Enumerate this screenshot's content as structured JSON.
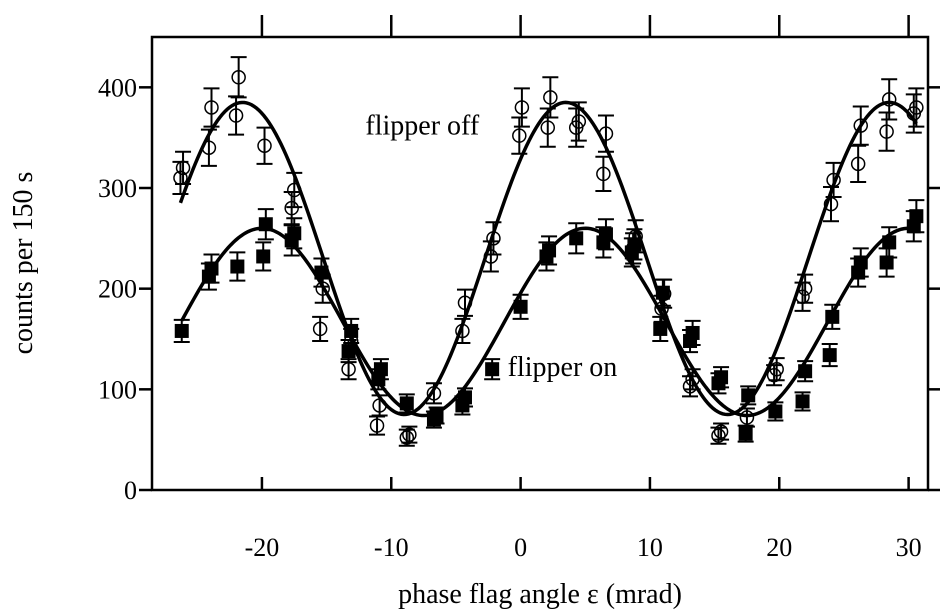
{
  "chart_data": {
    "type": "scatter",
    "title": "",
    "xlabel": "phase flag angle ε (mrad)",
    "ylabel": "counts per 150 s",
    "xlim": [
      -28.5,
      31.5
    ],
    "ylim": [
      0,
      450
    ],
    "xticks": [
      -20,
      -10,
      0,
      10,
      20,
      30
    ],
    "yticks": [
      0,
      100,
      200,
      300,
      400
    ],
    "x_tick_labels": [
      "-20",
      "-10",
      "0",
      "10",
      "20",
      "30"
    ],
    "y_tick_labels": [
      "0",
      "100",
      "200",
      "300",
      "400"
    ],
    "grid": false,
    "legend": "none",
    "annotations": [
      {
        "text": "flipper off",
        "x": -12,
        "y": 362
      },
      {
        "text": "flipper on",
        "x": -1,
        "y": 122
      }
    ],
    "series": [
      {
        "marker": "open-circle",
        "fit": {
          "mean": 230,
          "amplitude": 155,
          "period": 25,
          "phase_x": 3.5
        },
        "points": [
          {
            "x": -26.3,
            "y": 310,
            "err": 16
          },
          {
            "x": -26.1,
            "y": 320,
            "err": 16
          },
          {
            "x": -24.1,
            "y": 340,
            "err": 18
          },
          {
            "x": -23.9,
            "y": 380,
            "err": 19
          },
          {
            "x": -22.0,
            "y": 372,
            "err": 19
          },
          {
            "x": -21.8,
            "y": 410,
            "err": 20
          },
          {
            "x": -19.8,
            "y": 342,
            "err": 18
          },
          {
            "x": -17.7,
            "y": 280,
            "err": 16
          },
          {
            "x": -17.5,
            "y": 298,
            "err": 17
          },
          {
            "x": -15.5,
            "y": 160,
            "err": 12
          },
          {
            "x": -15.3,
            "y": 200,
            "err": 14
          },
          {
            "x": -13.3,
            "y": 120,
            "err": 10
          },
          {
            "x": -13.1,
            "y": 148,
            "err": 12
          },
          {
            "x": -11.1,
            "y": 64,
            "err": 9
          },
          {
            "x": -10.9,
            "y": 84,
            "err": 10
          },
          {
            "x": -8.8,
            "y": 52,
            "err": 8
          },
          {
            "x": -8.6,
            "y": 55,
            "err": 8
          },
          {
            "x": -6.7,
            "y": 96,
            "err": 10
          },
          {
            "x": -4.5,
            "y": 158,
            "err": 12
          },
          {
            "x": -4.3,
            "y": 186,
            "err": 13
          },
          {
            "x": -2.3,
            "y": 232,
            "err": 15
          },
          {
            "x": -2.1,
            "y": 250,
            "err": 16
          },
          {
            "x": -0.1,
            "y": 352,
            "err": 18
          },
          {
            "x": 0.1,
            "y": 380,
            "err": 19
          },
          {
            "x": 2.1,
            "y": 360,
            "err": 19
          },
          {
            "x": 2.3,
            "y": 390,
            "err": 20
          },
          {
            "x": 4.3,
            "y": 360,
            "err": 19
          },
          {
            "x": 4.5,
            "y": 366,
            "err": 19
          },
          {
            "x": 6.4,
            "y": 314,
            "err": 17
          },
          {
            "x": 6.6,
            "y": 354,
            "err": 18
          },
          {
            "x": 8.7,
            "y": 240,
            "err": 15
          },
          {
            "x": 8.9,
            "y": 252,
            "err": 16
          },
          {
            "x": 10.9,
            "y": 180,
            "err": 13
          },
          {
            "x": 11.1,
            "y": 195,
            "err": 14
          },
          {
            "x": 13.1,
            "y": 103,
            "err": 10
          },
          {
            "x": 13.3,
            "y": 110,
            "err": 10
          },
          {
            "x": 15.3,
            "y": 54,
            "err": 8
          },
          {
            "x": 15.5,
            "y": 58,
            "err": 8
          },
          {
            "x": 17.5,
            "y": 72,
            "err": 9
          },
          {
            "x": 19.6,
            "y": 114,
            "err": 10
          },
          {
            "x": 19.8,
            "y": 120,
            "err": 11
          },
          {
            "x": 21.8,
            "y": 192,
            "err": 14
          },
          {
            "x": 22.0,
            "y": 200,
            "err": 14
          },
          {
            "x": 24.0,
            "y": 284,
            "err": 17
          },
          {
            "x": 24.2,
            "y": 308,
            "err": 17
          },
          {
            "x": 26.1,
            "y": 324,
            "err": 18
          },
          {
            "x": 26.3,
            "y": 362,
            "err": 19
          },
          {
            "x": 28.3,
            "y": 356,
            "err": 19
          },
          {
            "x": 28.5,
            "y": 388,
            "err": 20
          },
          {
            "x": 30.4,
            "y": 374,
            "err": 19
          },
          {
            "x": 30.6,
            "y": 380,
            "err": 19
          }
        ]
      },
      {
        "marker": "filled-square",
        "fit": {
          "mean": 167,
          "amplitude": 93,
          "period": 25,
          "phase_x": 5.0
        },
        "points": [
          {
            "x": -26.2,
            "y": 158,
            "err": 11
          },
          {
            "x": -24.1,
            "y": 212,
            "err": 13
          },
          {
            "x": -23.9,
            "y": 220,
            "err": 14
          },
          {
            "x": -21.9,
            "y": 222,
            "err": 14
          },
          {
            "x": -19.9,
            "y": 232,
            "err": 14
          },
          {
            "x": -19.7,
            "y": 264,
            "err": 15
          },
          {
            "x": -17.7,
            "y": 248,
            "err": 15
          },
          {
            "x": -17.5,
            "y": 255,
            "err": 15
          },
          {
            "x": -15.4,
            "y": 216,
            "err": 14
          },
          {
            "x": -13.3,
            "y": 138,
            "err": 11
          },
          {
            "x": -13.1,
            "y": 158,
            "err": 12
          },
          {
            "x": -11.0,
            "y": 110,
            "err": 10
          },
          {
            "x": -10.8,
            "y": 120,
            "err": 10
          },
          {
            "x": -8.8,
            "y": 86,
            "err": 9
          },
          {
            "x": -6.7,
            "y": 70,
            "err": 8
          },
          {
            "x": -6.5,
            "y": 74,
            "err": 8
          },
          {
            "x": -4.5,
            "y": 84,
            "err": 9
          },
          {
            "x": -4.3,
            "y": 92,
            "err": 9
          },
          {
            "x": -2.2,
            "y": 120,
            "err": 10
          },
          {
            "x": 0.0,
            "y": 182,
            "err": 12
          },
          {
            "x": 2.0,
            "y": 232,
            "err": 14
          },
          {
            "x": 2.2,
            "y": 238,
            "err": 14
          },
          {
            "x": 4.3,
            "y": 250,
            "err": 15
          },
          {
            "x": 6.4,
            "y": 246,
            "err": 15
          },
          {
            "x": 6.6,
            "y": 254,
            "err": 15
          },
          {
            "x": 8.6,
            "y": 236,
            "err": 14
          },
          {
            "x": 8.8,
            "y": 244,
            "err": 15
          },
          {
            "x": 10.8,
            "y": 160,
            "err": 12
          },
          {
            "x": 11.0,
            "y": 196,
            "err": 13
          },
          {
            "x": 13.1,
            "y": 148,
            "err": 11
          },
          {
            "x": 13.3,
            "y": 156,
            "err": 12
          },
          {
            "x": 15.3,
            "y": 106,
            "err": 10
          },
          {
            "x": 15.5,
            "y": 112,
            "err": 10
          },
          {
            "x": 17.4,
            "y": 56,
            "err": 8
          },
          {
            "x": 17.6,
            "y": 94,
            "err": 9
          },
          {
            "x": 19.7,
            "y": 78,
            "err": 9
          },
          {
            "x": 21.8,
            "y": 88,
            "err": 9
          },
          {
            "x": 22.0,
            "y": 118,
            "err": 10
          },
          {
            "x": 23.9,
            "y": 134,
            "err": 11
          },
          {
            "x": 24.1,
            "y": 172,
            "err": 12
          },
          {
            "x": 26.1,
            "y": 216,
            "err": 14
          },
          {
            "x": 26.3,
            "y": 226,
            "err": 14
          },
          {
            "x": 28.3,
            "y": 226,
            "err": 14
          },
          {
            "x": 28.5,
            "y": 246,
            "err": 15
          },
          {
            "x": 30.4,
            "y": 262,
            "err": 15
          },
          {
            "x": 30.6,
            "y": 272,
            "err": 16
          }
        ]
      }
    ]
  }
}
